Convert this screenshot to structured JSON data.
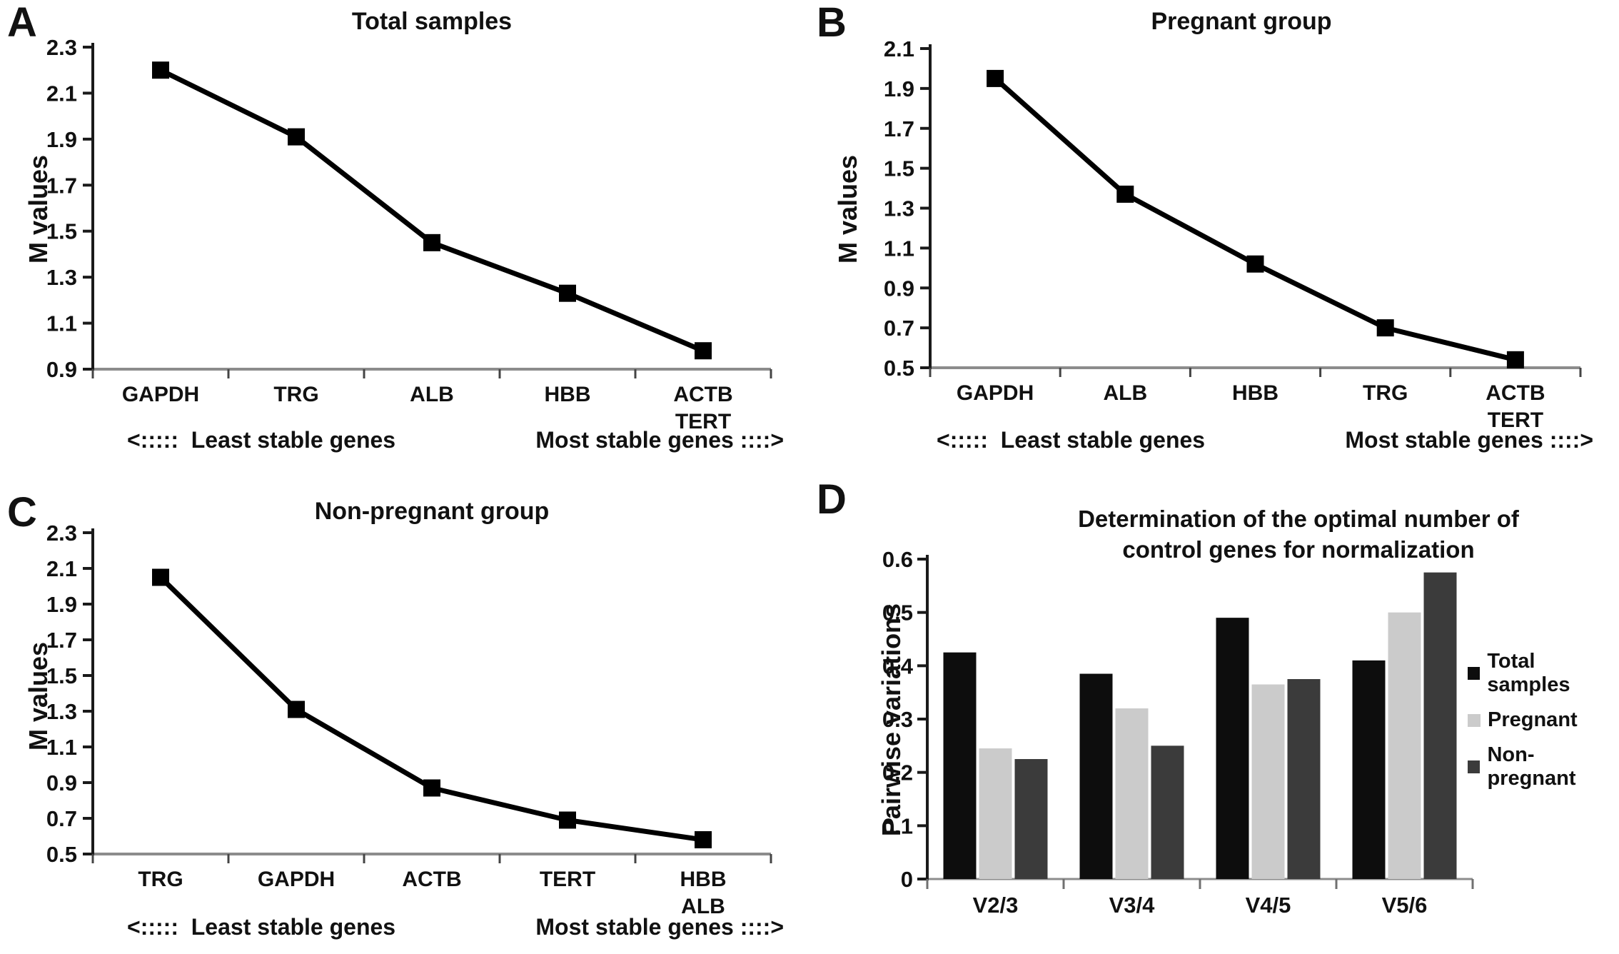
{
  "figure": {
    "background_color": "#ffffff"
  },
  "chart_data": [
    {
      "panel": "A",
      "type": "line",
      "title": "Total samples",
      "xlabel": "",
      "ylabel": "M values",
      "ylim": [
        0.9,
        2.3
      ],
      "y_tick_step": 0.2,
      "categories": [
        "GAPDH",
        "TRG",
        "ALB",
        "HBB",
        "ACTB\nTERT"
      ],
      "values": [
        2.2,
        1.91,
        1.45,
        1.23,
        0.98
      ],
      "line_color": "#000000",
      "marker": "square",
      "grid": false,
      "legend_position": "none",
      "annotations": [
        "<:::::  Least stable genes",
        "Most stable genes ::::>"
      ]
    },
    {
      "panel": "B",
      "type": "line",
      "title": "Pregnant group",
      "xlabel": "",
      "ylabel": "M values",
      "ylim": [
        0.5,
        2.1
      ],
      "y_tick_step": 0.2,
      "categories": [
        "GAPDH",
        "ALB",
        "HBB",
        "TRG",
        "ACTB\nTERT"
      ],
      "values": [
        1.95,
        1.37,
        1.02,
        0.7,
        0.54
      ],
      "line_color": "#000000",
      "marker": "square",
      "grid": false,
      "legend_position": "none",
      "annotations": [
        "<:::::  Least stable genes",
        "Most stable genes ::::>"
      ]
    },
    {
      "panel": "C",
      "type": "line",
      "title": "Non-pregnant group",
      "xlabel": "",
      "ylabel": "M values",
      "ylim": [
        0.5,
        2.3
      ],
      "y_tick_step": 0.2,
      "categories": [
        "TRG",
        "GAPDH",
        "ACTB",
        "TERT",
        "HBB\nALB"
      ],
      "values": [
        2.05,
        1.31,
        0.87,
        0.69,
        0.58
      ],
      "line_color": "#000000",
      "marker": "square",
      "grid": false,
      "legend_position": "none",
      "annotations": [
        "<:::::  Least stable genes",
        "Most stable genes ::::>"
      ]
    },
    {
      "panel": "D",
      "type": "bar",
      "title": "Determination of the optimal number of\ncontrol genes for normalization",
      "xlabel": "",
      "ylabel": "Pairwise variations",
      "ylim": [
        0,
        0.6
      ],
      "y_tick_step": 0.1,
      "categories": [
        "V2/3",
        "V3/4",
        "V4/5",
        "V5/6"
      ],
      "series": [
        {
          "name": "Total samples",
          "color": "#0d0d0d",
          "values": [
            0.425,
            0.385,
            0.49,
            0.41
          ]
        },
        {
          "name": "Pregnant",
          "color": "#cbcbcb",
          "values": [
            0.245,
            0.32,
            0.365,
            0.5
          ]
        },
        {
          "name": "Non-pregnant",
          "color": "#3b3b3b",
          "values": [
            0.225,
            0.25,
            0.375,
            0.575
          ]
        }
      ],
      "grid": false,
      "legend_position": "right"
    }
  ]
}
